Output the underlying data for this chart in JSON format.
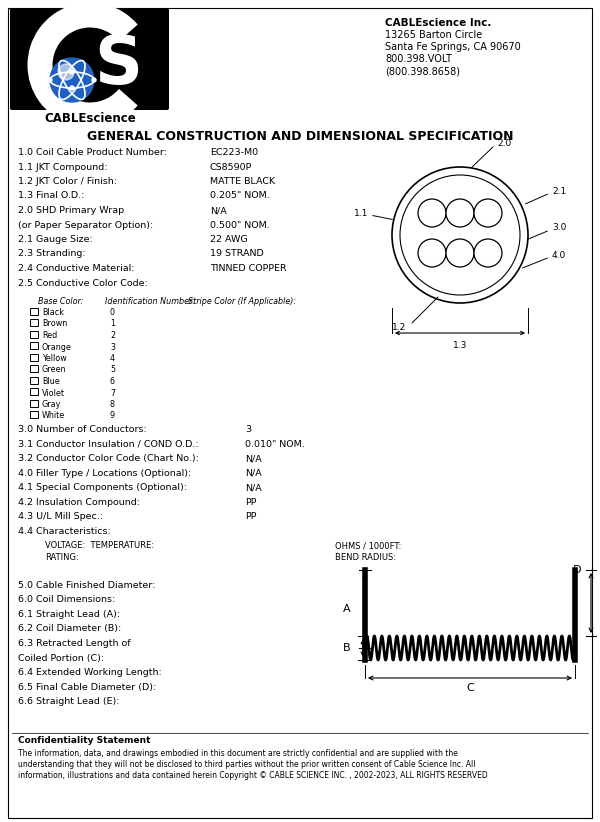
{
  "bg_color": "#ffffff",
  "title": "GENERAL CONSTRUCTION AND DIMENSIONAL SPECIFICATION",
  "company_name": "CABLEscience Inc.",
  "company_addr1": "13265 Barton Circle",
  "company_addr2": "Santa Fe Springs, CA 90670",
  "company_phone1": "800.398.VOLT",
  "company_phone2": "(800.398.8658)",
  "left_specs": [
    [
      "1.0 Coil Cable Product Number:",
      "EC223-M0"
    ],
    [
      "1.1 JKT Compound:",
      "CS8590P"
    ],
    [
      "1.2 JKT Color / Finish:",
      "MATTE BLACK"
    ],
    [
      "1.3 Final O.D.:",
      "0.205\" NOM."
    ],
    [
      "2.0 SHD Primary Wrap",
      "N/A"
    ],
    [
      "(or Paper Separator Option):",
      "0.500\" NOM."
    ],
    [
      "2.1 Gauge Size:",
      "22 AWG"
    ],
    [
      "2.3 Stranding:",
      "19 STRAND"
    ],
    [
      "2.4 Conductive Material:",
      "TINNED COPPER"
    ],
    [
      "2.5 Conductive Color Code:",
      ""
    ]
  ],
  "color_table_headers": [
    "Base Color:",
    "Identification Number:",
    "Stripe Color (If Applicable):"
  ],
  "color_rows": [
    [
      "Black",
      "0"
    ],
    [
      "Brown",
      "1"
    ],
    [
      "Red",
      "2"
    ],
    [
      "Orange",
      "3"
    ],
    [
      "Yellow",
      "4"
    ],
    [
      "Green",
      "5"
    ],
    [
      "Blue",
      "6"
    ],
    [
      "Violet",
      "7"
    ],
    [
      "Gray",
      "8"
    ],
    [
      "White",
      "9"
    ]
  ],
  "mid_specs": [
    [
      "3.0 Number of Conductors:",
      "3"
    ],
    [
      "3.1 Conductor Insulation / COND O.D.:",
      "0.010\" NOM."
    ],
    [
      "3.2 Conductor Color Code (Chart No.):",
      "N/A"
    ],
    [
      "4.0 Filler Type / Locations (Optional):",
      "N/A"
    ],
    [
      "4.1 Special Components (Optional):",
      "N/A"
    ],
    [
      "4.2 Insulation Compound:",
      "PP"
    ],
    [
      "4.3 U/L Mill Spec.:",
      "PP"
    ],
    [
      "4.4 Characteristics:",
      ""
    ]
  ],
  "char_sub": [
    "VOLTAGE:  TEMPERATURE:",
    "RATING:"
  ],
  "right_char": [
    "OHMS / 1000FT:",
    "BEND RADIUS:"
  ],
  "bottom_specs": [
    "5.0 Cable Finished Diameter:",
    "6.0 Coil Dimensions:",
    "6.1 Straight Lead (A):",
    "6.2 Coil Diameter (B):",
    "6.3 Retracted Length of",
    "Coiled Portion (C):",
    "6.4 Extended Working Length:",
    "6.5 Final Cable Diameter (D):",
    "6.6 Straight Lead (E):"
  ],
  "confidentiality": "Confidentiality Statement",
  "conf_text1": "The information, data, and drawings embodied in this document are strictly confidential and are supplied with the",
  "conf_text2": "understanding that they will not be disclosed to third parties without the prior written consent of Cable Science Inc. All",
  "conf_text3": "information, illustrations and data contained herein Copyright © CABLE SCIENCE INC. , 2002-2023, ALL RIGHTS RESERVED"
}
